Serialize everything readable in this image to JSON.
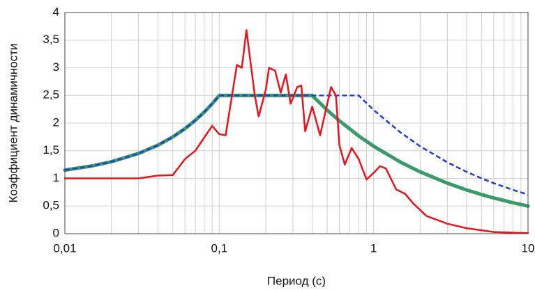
{
  "chart_data": {
    "type": "line",
    "xlabel": "Период (с)",
    "ylabel": "Коэффициент динамичности",
    "xscale": "log",
    "xlim": [
      0.01,
      10
    ],
    "xticks": [
      {
        "value": 0.01,
        "label": "0,01"
      },
      {
        "value": 0.1,
        "label": "0,1"
      },
      1,
      10
    ],
    "minor_xticks": [
      0.02,
      0.03,
      0.04,
      0.05,
      0.06,
      0.07,
      0.08,
      0.09,
      0.2,
      0.3,
      0.4,
      0.5,
      0.6,
      0.7,
      0.8,
      0.9,
      2,
      3,
      4,
      5,
      6,
      7,
      8,
      9
    ],
    "ylim": [
      0,
      4
    ],
    "yticks": [
      0,
      {
        "value": 0.5,
        "label": "0,5"
      },
      1,
      {
        "value": 1.5,
        "label": "1,5"
      },
      2,
      {
        "value": 2.5,
        "label": "2,5"
      },
      3,
      {
        "value": 3.5,
        "label": "3,5"
      },
      4
    ],
    "grid": true,
    "series": [
      {
        "color": "#3a9a6a",
        "width": 5,
        "style": "solid",
        "x": [
          0.01,
          0.015,
          0.02,
          0.03,
          0.04,
          0.05,
          0.06,
          0.07,
          0.08,
          0.09,
          0.1,
          0.2,
          0.3,
          0.4,
          0.5,
          0.6,
          0.8,
          1,
          1.5,
          2,
          3,
          4,
          5,
          6,
          8,
          10
        ],
        "values": [
          1.15,
          1.225,
          1.3,
          1.45,
          1.6,
          1.75,
          1.9,
          2.05,
          2.2,
          2.35,
          2.5,
          2.5,
          2.5,
          2.5,
          2.236,
          2.041,
          1.768,
          1.581,
          1.291,
          1.118,
          0.913,
          0.791,
          0.707,
          0.645,
          0.559,
          0.5
        ]
      },
      {
        "color": "#1f3fd0",
        "width": 2.5,
        "style": "dashed",
        "x": [
          0.01,
          0.015,
          0.02,
          0.03,
          0.04,
          0.05,
          0.06,
          0.07,
          0.08,
          0.09,
          0.1,
          0.2,
          0.3,
          0.4,
          0.5,
          0.6,
          0.8,
          1,
          1.5,
          2,
          3,
          4,
          5,
          6,
          8,
          10
        ],
        "values": [
          1.15,
          1.225,
          1.3,
          1.45,
          1.6,
          1.75,
          1.9,
          2.05,
          2.2,
          2.35,
          2.5,
          2.5,
          2.5,
          2.5,
          2.5,
          2.5,
          2.5,
          2.236,
          1.826,
          1.581,
          1.291,
          1.118,
          1.0,
          0.913,
          0.791,
          0.707
        ]
      },
      {
        "color": "#e8141c",
        "width": 2.5,
        "style": "solid",
        "x": [
          0.01,
          0.03,
          0.04,
          0.05,
          0.06,
          0.07,
          0.09,
          0.1,
          0.11,
          0.13,
          0.14,
          0.15,
          0.17,
          0.18,
          0.2,
          0.21,
          0.23,
          0.25,
          0.27,
          0.29,
          0.32,
          0.34,
          0.36,
          0.4,
          0.45,
          0.53,
          0.57,
          0.6,
          0.65,
          0.72,
          0.8,
          0.9,
          1.0,
          1.1,
          1.2,
          1.4,
          1.6,
          1.8,
          2.2,
          3,
          4,
          6,
          10
        ],
        "values": [
          1.0,
          1.0,
          1.05,
          1.06,
          1.35,
          1.5,
          1.95,
          1.8,
          1.78,
          3.05,
          3.0,
          3.68,
          2.5,
          2.12,
          2.6,
          3.0,
          2.95,
          2.55,
          2.88,
          2.35,
          2.65,
          2.68,
          1.85,
          2.3,
          1.78,
          2.65,
          2.5,
          1.6,
          1.25,
          1.55,
          1.35,
          0.98,
          1.1,
          1.22,
          1.18,
          0.8,
          0.72,
          0.55,
          0.32,
          0.18,
          0.1,
          0.03,
          0.01
        ]
      }
    ]
  }
}
